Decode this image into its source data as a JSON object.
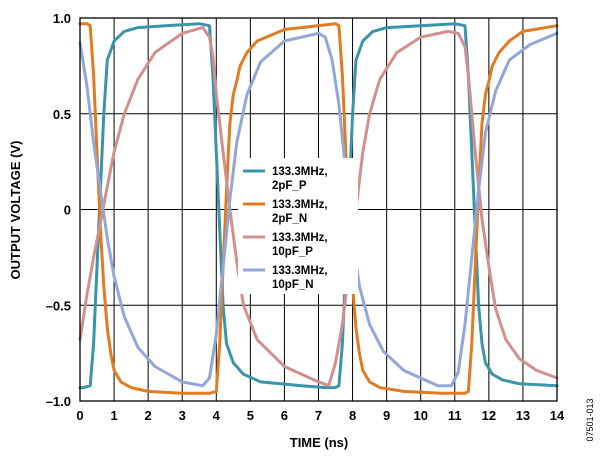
{
  "chart_data": {
    "type": "line",
    "xlabel": "TIME (ns)",
    "ylabel": "OUTPUT VOLTAGE (V)",
    "xlim": [
      0,
      14
    ],
    "ylim": [
      -1.0,
      1.0
    ],
    "x_ticks": [
      0,
      1,
      2,
      3,
      4,
      5,
      6,
      7,
      8,
      9,
      10,
      11,
      12,
      13,
      14
    ],
    "y_ticks": [
      {
        "value": 1.0,
        "label": "1.0"
      },
      {
        "value": 0.5,
        "label": "0.5"
      },
      {
        "value": 0,
        "label": "0"
      },
      {
        "value": -0.5,
        "label": "–0.5"
      },
      {
        "value": -1.0,
        "label": "–1.0"
      }
    ],
    "grid": true,
    "legend_position": "center-right",
    "figure_id": "07501-013",
    "series": [
      {
        "name": "133.3MHz, 2pF_P",
        "legend_lines": [
          "133.3MHz,",
          "2pF_P"
        ],
        "color": "#3a95a9",
        "x": [
          0,
          0.1,
          0.3,
          0.4,
          0.5,
          0.6,
          0.7,
          0.8,
          1.0,
          1.3,
          1.7,
          2.5,
          3.5,
          3.8,
          3.9,
          4.0,
          4.1,
          4.2,
          4.3,
          4.5,
          4.8,
          5.3,
          6.5,
          7.2,
          7.5,
          7.6,
          7.7,
          7.8,
          7.9,
          8.0,
          8.1,
          8.3,
          8.6,
          9.0,
          10.0,
          11.0,
          11.3,
          11.4,
          11.5,
          11.6,
          11.7,
          11.8,
          11.9,
          12.1,
          12.4,
          12.9,
          14.0
        ],
        "y": [
          -0.93,
          -0.93,
          -0.92,
          -0.7,
          -0.3,
          0.1,
          0.5,
          0.78,
          0.88,
          0.93,
          0.95,
          0.96,
          0.97,
          0.96,
          0.7,
          0.3,
          -0.1,
          -0.5,
          -0.7,
          -0.8,
          -0.86,
          -0.9,
          -0.92,
          -0.93,
          -0.93,
          -0.92,
          -0.7,
          -0.3,
          0.1,
          0.5,
          0.78,
          0.88,
          0.93,
          0.95,
          0.96,
          0.97,
          0.96,
          0.7,
          0.3,
          -0.1,
          -0.5,
          -0.7,
          -0.8,
          -0.86,
          -0.89,
          -0.91,
          -0.92
        ]
      },
      {
        "name": "133.3MHz, 2pF_N",
        "legend_lines": [
          "133.3MHz,",
          "2pF_N"
        ],
        "color": "#e07b22",
        "x": [
          0,
          0.2,
          0.3,
          0.4,
          0.5,
          0.6,
          0.7,
          0.8,
          0.9,
          1.0,
          1.2,
          1.5,
          2.0,
          3.0,
          3.8,
          4.0,
          4.1,
          4.2,
          4.3,
          4.4,
          4.5,
          4.6,
          4.7,
          4.9,
          5.2,
          6.0,
          7.5,
          7.6,
          7.7,
          7.8,
          7.9,
          8.0,
          8.1,
          8.2,
          8.3,
          8.5,
          8.8,
          9.5,
          10.6,
          11.3,
          11.4,
          11.5,
          11.6,
          11.7,
          11.8,
          11.9,
          12.0,
          12.1,
          12.3,
          12.6,
          13.0,
          14.0
        ],
        "y": [
          0.97,
          0.97,
          0.96,
          0.7,
          0.3,
          -0.1,
          -0.4,
          -0.62,
          -0.75,
          -0.84,
          -0.9,
          -0.93,
          -0.95,
          -0.96,
          -0.96,
          -0.95,
          -0.7,
          -0.3,
          0.1,
          0.45,
          0.6,
          0.67,
          0.75,
          0.82,
          0.88,
          0.94,
          0.97,
          0.96,
          0.7,
          0.3,
          -0.1,
          -0.4,
          -0.62,
          -0.75,
          -0.84,
          -0.9,
          -0.93,
          -0.95,
          -0.96,
          -0.96,
          -0.95,
          -0.7,
          -0.3,
          0.1,
          0.45,
          0.6,
          0.67,
          0.75,
          0.82,
          0.88,
          0.93,
          0.96
        ]
      },
      {
        "name": "133.3MHz, 10pF_P",
        "legend_lines": [
          "133.3MHz,",
          "10pF_P"
        ],
        "color": "#d18f8f",
        "x": [
          0,
          0.2,
          0.4,
          0.6,
          0.8,
          1.0,
          1.3,
          1.7,
          2.2,
          3.0,
          3.6,
          3.8,
          3.9,
          4.0,
          4.2,
          4.4,
          4.6,
          4.8,
          5.2,
          6.0,
          7.0,
          7.3,
          7.5,
          7.7,
          7.9,
          8.1,
          8.3,
          8.5,
          8.8,
          9.3,
          10.0,
          10.8,
          11.1,
          11.3,
          11.4,
          11.6,
          11.8,
          12.0,
          12.2,
          12.5,
          12.9,
          13.4,
          14.0
        ],
        "y": [
          -0.68,
          -0.45,
          -0.25,
          -0.07,
          0.12,
          0.3,
          0.5,
          0.68,
          0.82,
          0.92,
          0.95,
          0.9,
          0.8,
          0.6,
          0.3,
          0.0,
          -0.27,
          -0.5,
          -0.68,
          -0.82,
          -0.9,
          -0.92,
          -0.8,
          -0.6,
          -0.3,
          0.0,
          0.3,
          0.5,
          0.68,
          0.82,
          0.9,
          0.93,
          0.92,
          0.85,
          0.7,
          0.3,
          -0.05,
          -0.3,
          -0.52,
          -0.68,
          -0.78,
          -0.84,
          -0.88
        ]
      },
      {
        "name": "133.3MHz, 10pF_N",
        "legend_lines": [
          "133.3MHz,",
          "10pF_N"
        ],
        "color": "#93a6d6",
        "x": [
          0,
          0.2,
          0.4,
          0.6,
          0.8,
          1.0,
          1.3,
          1.7,
          2.2,
          3.0,
          3.6,
          3.8,
          4.0,
          4.2,
          4.4,
          4.6,
          4.9,
          5.3,
          6.0,
          7.0,
          7.2,
          7.4,
          7.6,
          7.8,
          8.0,
          8.2,
          8.5,
          8.9,
          9.5,
          10.5,
          10.9,
          11.1,
          11.3,
          11.5,
          11.7,
          11.9,
          12.2,
          12.6,
          13.2,
          14.0
        ],
        "y": [
          0.87,
          0.65,
          0.35,
          0.1,
          -0.15,
          -0.35,
          -0.56,
          -0.72,
          -0.82,
          -0.9,
          -0.92,
          -0.88,
          -0.65,
          -0.3,
          0.05,
          0.35,
          0.6,
          0.77,
          0.88,
          0.92,
          0.9,
          0.78,
          0.55,
          0.2,
          -0.15,
          -0.4,
          -0.6,
          -0.74,
          -0.84,
          -0.92,
          -0.92,
          -0.85,
          -0.6,
          -0.25,
          0.1,
          0.4,
          0.62,
          0.78,
          0.86,
          0.92
        ]
      }
    ]
  }
}
